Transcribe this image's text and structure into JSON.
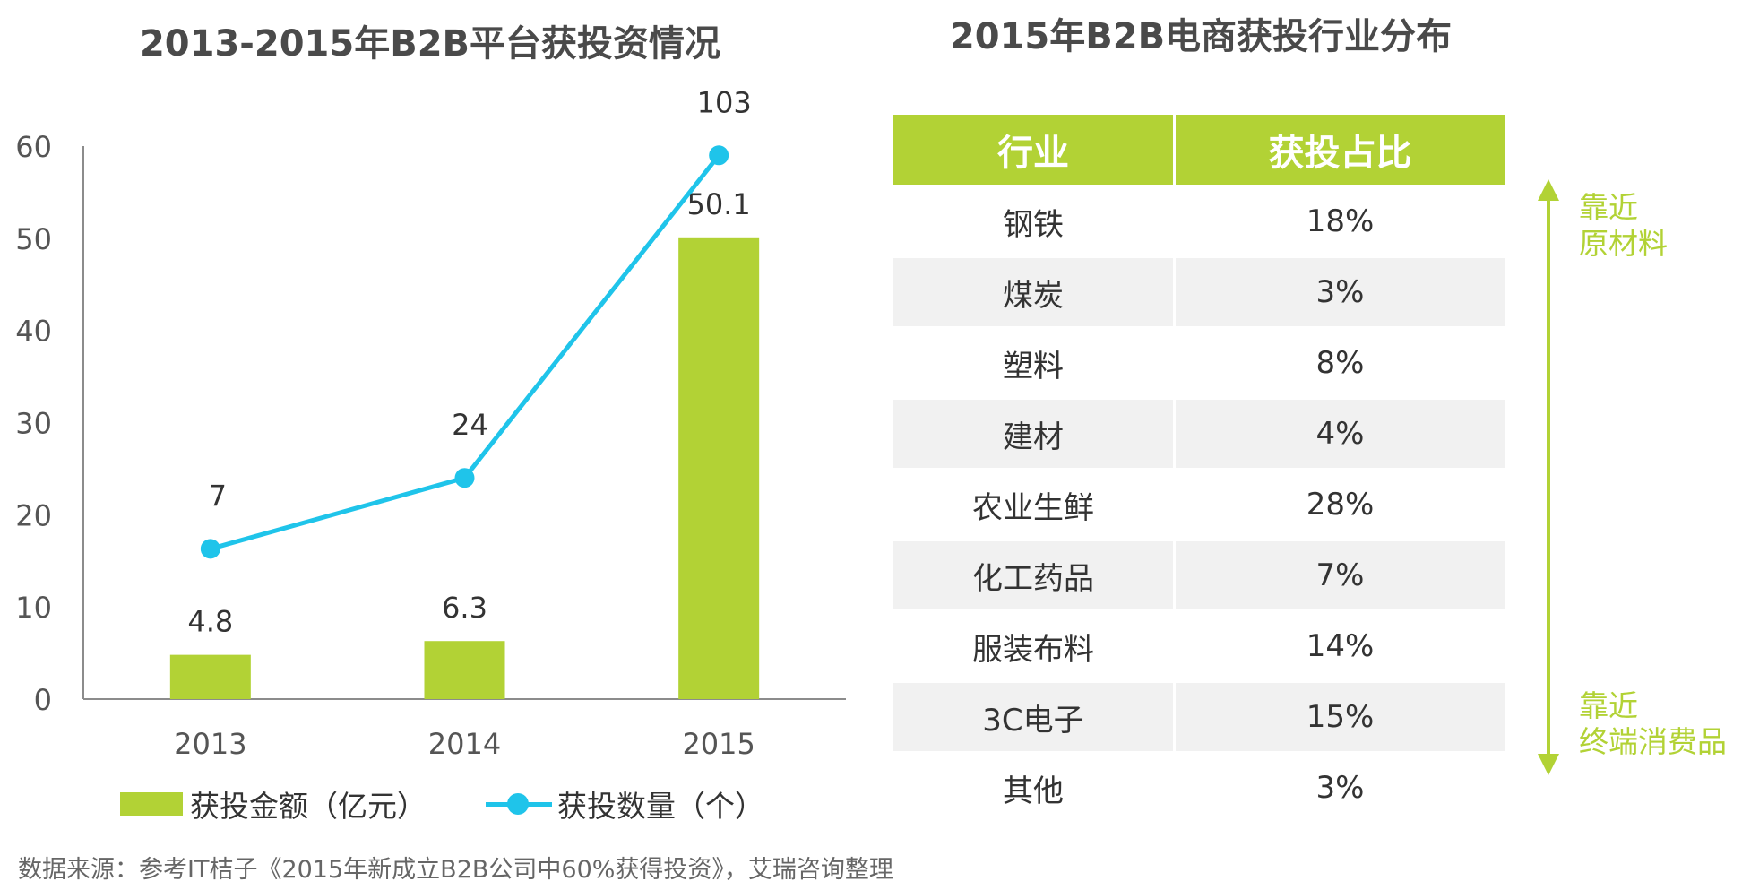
{
  "chart_data": {
    "type": "bar+line",
    "title": "2013-2015年B2B平台获投资情况",
    "categories": [
      "2013",
      "2014",
      "2015"
    ],
    "series": [
      {
        "name": "获投金额（亿元）",
        "kind": "bar",
        "values": [
          4.8,
          6.3,
          50.1
        ],
        "labels": [
          "4.8",
          "6.3",
          "50.1"
        ],
        "color": "#b2d235"
      },
      {
        "name": "获投数量（个）",
        "kind": "line",
        "values": [
          7,
          24,
          103
        ],
        "labels": [
          "7",
          "24",
          "103"
        ],
        "plotted_y": [
          16.3,
          24,
          59
        ],
        "color": "#1fc4ea"
      }
    ],
    "yticks": [
      "0",
      "10",
      "20",
      "30",
      "40",
      "50",
      "60"
    ],
    "ylim": [
      0,
      60
    ],
    "xlabel": "",
    "ylabel": "",
    "legend_position": "bottom",
    "grid": false
  },
  "legend": {
    "bar_label": "获投金额（亿元）",
    "line_label": "获投数量（个）"
  },
  "table": {
    "title": "2015年B2B电商获投行业分布",
    "headers": [
      "行业",
      "获投占比"
    ],
    "rows": [
      {
        "industry": "钢铁",
        "share": "18%"
      },
      {
        "industry": "煤炭",
        "share": "3%"
      },
      {
        "industry": "塑料",
        "share": "8%"
      },
      {
        "industry": "建材",
        "share": "4%"
      },
      {
        "industry": "农业生鲜",
        "share": "28%"
      },
      {
        "industry": "化工药品",
        "share": "7%"
      },
      {
        "industry": "服装布料",
        "share": "14%"
      },
      {
        "industry": "3C电子",
        "share": "15%"
      },
      {
        "industry": "其他",
        "share": "3%"
      }
    ]
  },
  "side_labels": {
    "top": [
      "靠近",
      "原材料"
    ],
    "bottom": [
      "靠近",
      "终端消费品"
    ]
  },
  "arrow_color": "#b2d235",
  "source": "数据来源：参考IT桔子《2015年新成立B2B公司中60%获得投资》，艾瑞咨询整理"
}
